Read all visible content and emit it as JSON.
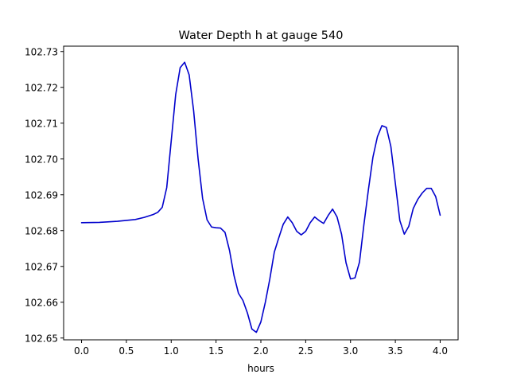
{
  "chart_data": {
    "type": "line",
    "title": "Water Depth h at gauge 540",
    "xlabel": "hours",
    "ylabel": "",
    "xlim": [
      -0.2,
      4.2
    ],
    "ylim": [
      102.6495,
      102.7315
    ],
    "xticks": [
      0.0,
      0.5,
      1.0,
      1.5,
      2.0,
      2.5,
      3.0,
      3.5,
      4.0
    ],
    "xtick_labels": [
      "0.0",
      "0.5",
      "1.0",
      "1.5",
      "2.0",
      "2.5",
      "3.0",
      "3.5",
      "4.0"
    ],
    "yticks": [
      102.65,
      102.66,
      102.67,
      102.68,
      102.69,
      102.7,
      102.71,
      102.72,
      102.73
    ],
    "ytick_labels": [
      "102.65",
      "102.66",
      "102.67",
      "102.68",
      "102.69",
      "102.70",
      "102.71",
      "102.72",
      "102.73"
    ],
    "grid": false,
    "series": [
      {
        "color": "#0000cc",
        "x": [
          0.0,
          0.2,
          0.4,
          0.6,
          0.7,
          0.8,
          0.85,
          0.9,
          0.95,
          1.0,
          1.05,
          1.1,
          1.15,
          1.2,
          1.25,
          1.3,
          1.35,
          1.4,
          1.45,
          1.5,
          1.55,
          1.6,
          1.65,
          1.7,
          1.75,
          1.8,
          1.85,
          1.9,
          1.95,
          2.0,
          2.05,
          2.1,
          2.15,
          2.2,
          2.25,
          2.3,
          2.35,
          2.4,
          2.45,
          2.5,
          2.55,
          2.6,
          2.65,
          2.7,
          2.75,
          2.8,
          2.85,
          2.9,
          2.95,
          3.0,
          3.05,
          3.1,
          3.15,
          3.2,
          3.25,
          3.3,
          3.35,
          3.4,
          3.45,
          3.5,
          3.55,
          3.6,
          3.65,
          3.7,
          3.75,
          3.8,
          3.85,
          3.9,
          3.95,
          4.0
        ],
        "y": [
          102.6822,
          102.6823,
          102.6826,
          102.6831,
          102.6837,
          102.6845,
          102.6851,
          102.6865,
          102.692,
          102.705,
          102.718,
          102.7255,
          102.727,
          102.7235,
          102.7135,
          102.7,
          102.689,
          102.683,
          102.681,
          102.6808,
          102.6807,
          102.6795,
          102.6745,
          102.6675,
          102.6625,
          102.6605,
          102.657,
          102.6525,
          102.6516,
          102.6545,
          102.66,
          102.6665,
          102.674,
          102.678,
          102.6818,
          102.6838,
          102.6822,
          102.6798,
          102.6788,
          102.6798,
          102.6822,
          102.6838,
          102.6828,
          102.682,
          102.6842,
          102.686,
          102.6838,
          102.679,
          102.671,
          102.6665,
          102.6668,
          102.6712,
          102.6818,
          102.6915,
          102.7005,
          102.7062,
          102.7093,
          102.7088,
          102.7035,
          102.6932,
          102.6828,
          102.679,
          102.6812,
          102.6862,
          102.6887,
          102.6905,
          102.6918,
          102.6918,
          102.6895,
          102.6843
        ]
      }
    ]
  }
}
